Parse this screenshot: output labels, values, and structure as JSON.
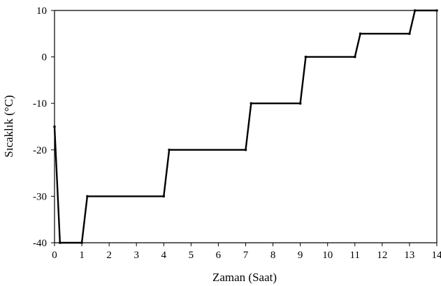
{
  "chart_data": {
    "type": "line",
    "title": "",
    "xlabel": "Zaman  (Saat)",
    "ylabel": "Sıcaklık  (°C)",
    "xlim": [
      0,
      14
    ],
    "ylim": [
      -40,
      10
    ],
    "xticks": [
      0,
      1,
      2,
      3,
      4,
      5,
      6,
      7,
      8,
      9,
      10,
      11,
      12,
      13,
      14
    ],
    "yticks": [
      -40,
      -30,
      -20,
      -10,
      0,
      10
    ],
    "xtick_labels": [
      "0",
      "1",
      "2",
      "3",
      "4",
      "5",
      "6",
      "7",
      "8",
      "9",
      "10",
      "11",
      "12",
      "13",
      "14"
    ],
    "ytick_labels": [
      "-40",
      "-30",
      "-20",
      "-10",
      "0",
      "10"
    ],
    "grid": false,
    "frame": "top-and-right border lines",
    "series": [
      {
        "color": "#000000",
        "points": [
          {
            "x": 0,
            "y": -15
          },
          {
            "x": 0.2,
            "y": -40
          },
          {
            "x": 1.0,
            "y": -40
          },
          {
            "x": 1.2,
            "y": -30
          },
          {
            "x": 4.0,
            "y": -30
          },
          {
            "x": 4.2,
            "y": -20
          },
          {
            "x": 7.0,
            "y": -20
          },
          {
            "x": 7.2,
            "y": -10
          },
          {
            "x": 9.0,
            "y": -10
          },
          {
            "x": 9.2,
            "y": 0
          },
          {
            "x": 11.0,
            "y": 0
          },
          {
            "x": 11.2,
            "y": 5
          },
          {
            "x": 13.0,
            "y": 5
          },
          {
            "x": 13.2,
            "y": 10
          },
          {
            "x": 14.0,
            "y": 10
          }
        ]
      }
    ]
  }
}
